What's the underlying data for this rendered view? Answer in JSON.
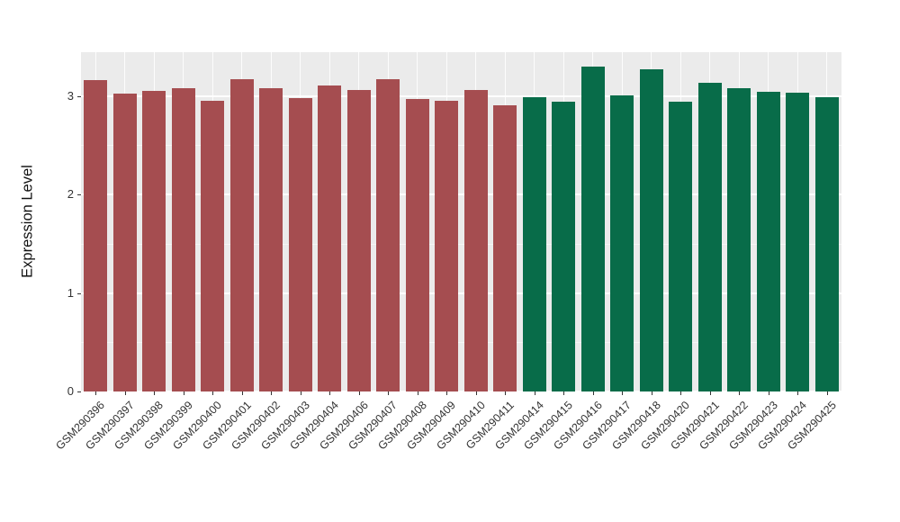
{
  "chart_data": {
    "type": "bar",
    "title": "",
    "xlabel": "",
    "ylabel": "Expression Level",
    "ylim": [
      0,
      3.45
    ],
    "y_ticks": [
      0,
      1,
      2,
      3
    ],
    "y_minor_ticks": [
      0.5,
      1.5,
      2.5
    ],
    "grid": "on",
    "legend": "none",
    "panel_background": "#EBEBEB",
    "categories": [
      "GSM290396",
      "GSM290397",
      "GSM290398",
      "GSM290399",
      "GSM290400",
      "GSM290401",
      "GSM290402",
      "GSM290403",
      "GSM290404",
      "GSM290406",
      "GSM290407",
      "GSM290408",
      "GSM290409",
      "GSM290410",
      "GSM290411",
      "GSM290414",
      "GSM290415",
      "GSM290416",
      "GSM290417",
      "GSM290418",
      "GSM290420",
      "GSM290421",
      "GSM290422",
      "GSM290423",
      "GSM290424",
      "GSM290425"
    ],
    "values": [
      3.17,
      3.03,
      3.06,
      3.08,
      2.96,
      3.18,
      3.08,
      2.98,
      3.11,
      3.07,
      3.18,
      2.97,
      2.96,
      3.07,
      2.91,
      2.99,
      2.95,
      3.3,
      3.01,
      3.28,
      2.95,
      3.14,
      3.08,
      3.05,
      3.04,
      2.99
    ],
    "groups": [
      "A",
      "A",
      "A",
      "A",
      "A",
      "A",
      "A",
      "A",
      "A",
      "A",
      "A",
      "A",
      "A",
      "A",
      "A",
      "B",
      "B",
      "B",
      "B",
      "B",
      "B",
      "B",
      "B",
      "B",
      "B",
      "B"
    ],
    "group_colors": {
      "A": "#A54D50",
      "B": "#086C49"
    }
  }
}
